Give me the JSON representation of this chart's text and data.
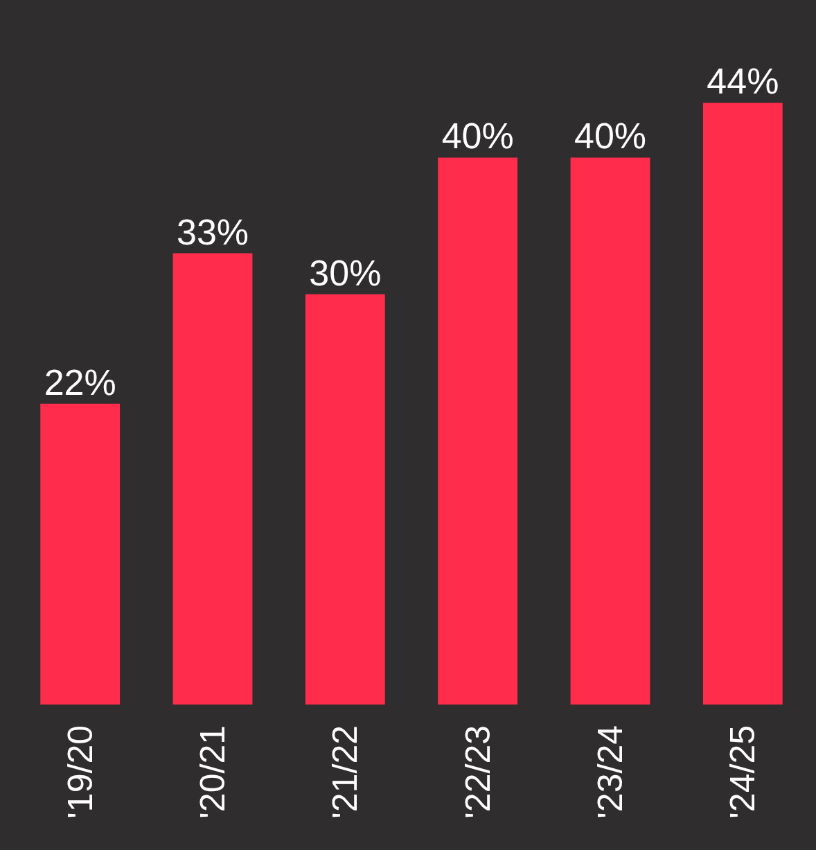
{
  "chart_data": {
    "type": "bar",
    "categories": [
      "'19/20",
      "'20/21",
      "'21/22",
      "'22/23",
      "'23/24",
      "'24/25"
    ],
    "values": [
      22,
      33,
      30,
      40,
      40,
      44
    ],
    "value_labels": [
      "22%",
      "33%",
      "30%",
      "40%",
      "40%",
      "44%"
    ],
    "color": "#ff2d4b"
  }
}
